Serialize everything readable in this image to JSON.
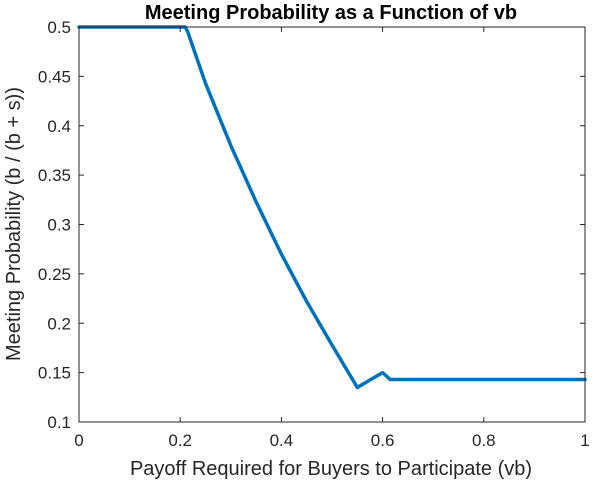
{
  "chart_data": {
    "type": "line",
    "title": "Meeting Probability as a Function of vb",
    "xlabel": "Payoff Required for Buyers to Participate (vb)",
    "ylabel": "Meeting Probability (b / (b + s))",
    "xlim": [
      0,
      1
    ],
    "ylim": [
      0.1,
      0.5
    ],
    "xticks": [
      0,
      0.2,
      0.4,
      0.6,
      0.8,
      1
    ],
    "xtick_labels": [
      "0",
      "0.2",
      "0.4",
      "0.6",
      "0.8",
      "1"
    ],
    "yticks": [
      0.1,
      0.15,
      0.2,
      0.25,
      0.3,
      0.35,
      0.4,
      0.45,
      0.5
    ],
    "ytick_labels": [
      "0.1",
      "0.15",
      "0.2",
      "0.25",
      "0.3",
      "0.35",
      "0.4",
      "0.45",
      "0.5"
    ],
    "grid": false,
    "box": true,
    "series": [
      {
        "color": "#0072BD",
        "x": [
          0,
          0.1,
          0.2,
          0.21,
          0.215,
          0.25,
          0.3,
          0.35,
          0.4,
          0.45,
          0.5,
          0.55,
          0.6,
          0.615,
          0.62,
          0.7,
          0.8,
          0.9,
          1.0
        ],
        "y": [
          0.5,
          0.5,
          0.5,
          0.5,
          0.495,
          0.443,
          0.38,
          0.323,
          0.27,
          0.222,
          0.178,
          0.135,
          0.15,
          0.143,
          0.143,
          0.143,
          0.143,
          0.143,
          0.143
        ]
      }
    ]
  }
}
